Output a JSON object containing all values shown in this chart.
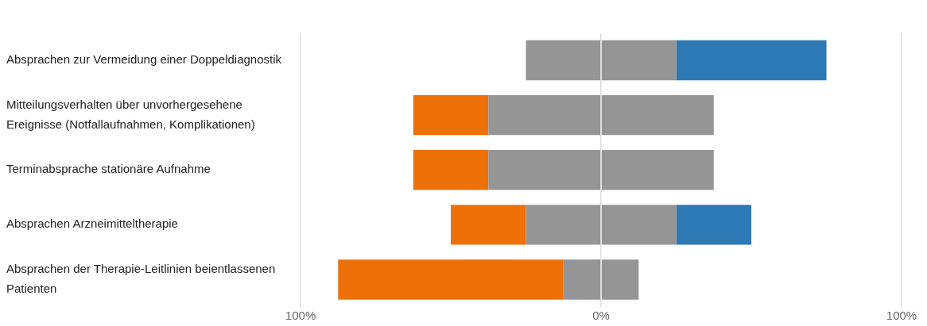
{
  "chart_data": {
    "type": "bar",
    "orientation": "horizontal",
    "stacked": true,
    "categories": [
      "Absprachen zur Vermeidung einer Doppeldiagnostik",
      "Mitteilungsverhalten über unvorhergesehene Ereignisse (Notfallaufnahmen, Komplikationen)",
      "Terminabsprache stationäre Aufnahme",
      "Absprachen Arzneimitteltherapie",
      "Absprachen der Therapie-Leitlinien beientlassenen Patienten"
    ],
    "series": [
      {
        "color": "#959595",
        "values": [
          -25,
          -37.5,
          -37.5,
          -25,
          -12.5
        ]
      },
      {
        "color": "#ed7009",
        "values": [
          null,
          -25,
          -25,
          -25,
          -75
        ]
      },
      {
        "color": "#959595",
        "values": [
          25,
          37.5,
          37.5,
          25,
          12.5
        ]
      },
      {
        "color": "#2e78b4",
        "values": [
          50,
          null,
          null,
          25,
          null
        ]
      }
    ],
    "xlim": [
      -100,
      100
    ],
    "xticks": [
      {
        "value": -100,
        "label": "100%"
      },
      {
        "value": 0,
        "label": "0%"
      },
      {
        "value": 100,
        "label": "100%"
      }
    ],
    "grid": "x",
    "legend": false
  }
}
